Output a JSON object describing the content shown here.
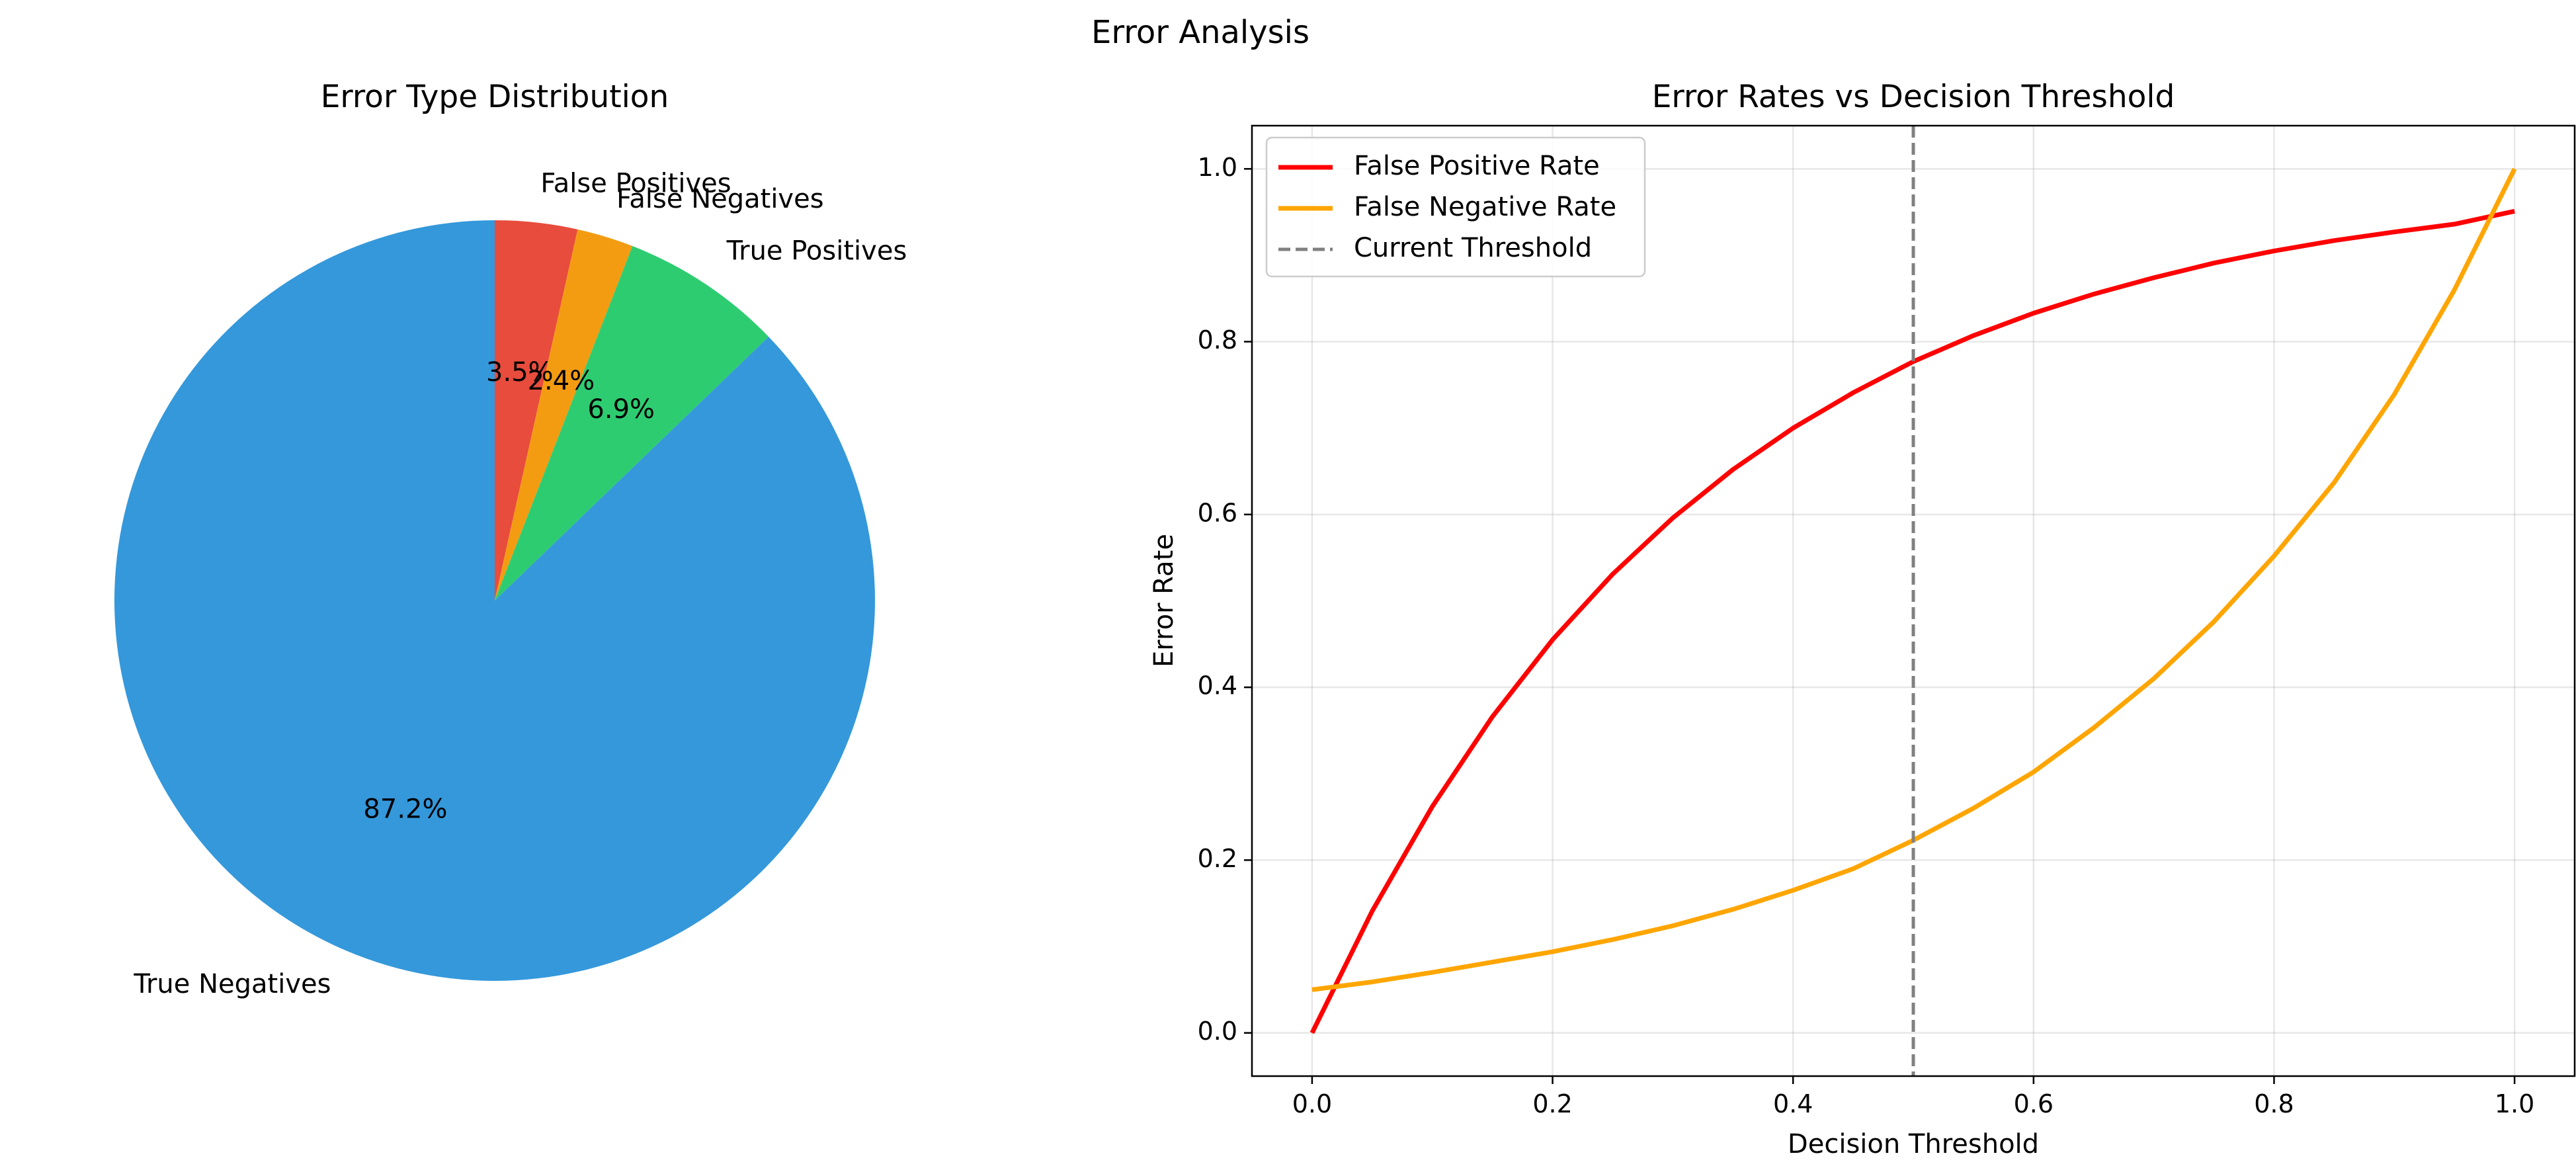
{
  "figure": {
    "suptitle": "Error Analysis"
  },
  "chart_data": [
    {
      "type": "pie",
      "title": "Error Type Distribution",
      "labels": [
        "False Positives",
        "False Negatives",
        "True Positives",
        "True Negatives"
      ],
      "values": [
        3.5,
        2.4,
        6.9,
        87.2
      ],
      "percent_labels": [
        "3.5%",
        "2.4%",
        "6.9%",
        "87.2%"
      ],
      "colors": [
        "#e74c3c",
        "#f39c12",
        "#2ecc71",
        "#3498db"
      ],
      "start_angle_deg": 90,
      "direction": "clockwise"
    },
    {
      "type": "line",
      "title": "Error Rates vs Decision Threshold",
      "xlabel": "Decision Threshold",
      "ylabel": "Error Rate",
      "xlim": [
        -0.05,
        1.05
      ],
      "ylim": [
        -0.05,
        1.05
      ],
      "xticks": [
        0.0,
        0.2,
        0.4,
        0.6,
        0.8,
        1.0
      ],
      "xtick_labels": [
        "0.0",
        "0.2",
        "0.4",
        "0.6",
        "0.8",
        "1.0"
      ],
      "yticks": [
        0.0,
        0.2,
        0.4,
        0.6,
        0.8,
        1.0
      ],
      "ytick_labels": [
        "0.0",
        "0.2",
        "0.4",
        "0.6",
        "0.8",
        "1.0"
      ],
      "grid": true,
      "legend_position": "top-left",
      "series": [
        {
          "name": "False Positive Rate",
          "color": "#ff0000",
          "style": "solid",
          "x": [
            0.0,
            0.05,
            0.1,
            0.15,
            0.2,
            0.25,
            0.3,
            0.35,
            0.4,
            0.45,
            0.5,
            0.55,
            0.6,
            0.65,
            0.7,
            0.75,
            0.8,
            0.85,
            0.9,
            0.95,
            1.0
          ],
          "y": [
            0.0,
            0.141,
            0.262,
            0.366,
            0.455,
            0.531,
            0.596,
            0.652,
            0.7,
            0.741,
            0.777,
            0.807,
            0.833,
            0.855,
            0.874,
            0.891,
            0.905,
            0.917,
            0.927,
            0.936,
            0.951
          ]
        },
        {
          "name": "False Negative Rate",
          "color": "#ffa500",
          "style": "solid",
          "x": [
            0.0,
            0.05,
            0.1,
            0.15,
            0.2,
            0.25,
            0.3,
            0.35,
            0.4,
            0.45,
            0.5,
            0.55,
            0.6,
            0.65,
            0.7,
            0.75,
            0.8,
            0.85,
            0.9,
            0.95,
            1.0
          ],
          "y": [
            0.05,
            0.059,
            0.07,
            0.082,
            0.094,
            0.108,
            0.124,
            0.143,
            0.165,
            0.19,
            0.223,
            0.26,
            0.302,
            0.353,
            0.41,
            0.476,
            0.552,
            0.637,
            0.739,
            0.86,
            1.0
          ]
        },
        {
          "name": "Current Threshold",
          "color": "#808080",
          "style": "dashed",
          "vline_x": 0.5
        }
      ]
    }
  ]
}
